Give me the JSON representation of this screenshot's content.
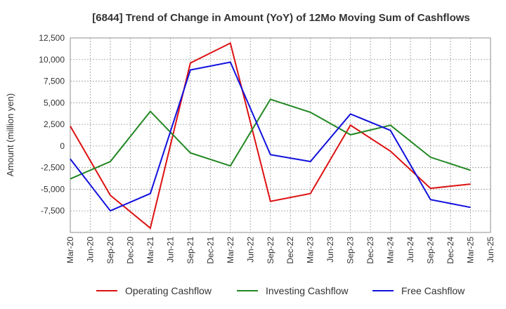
{
  "chart_data": {
    "type": "line",
    "title": "[6844]  Trend of Change in Amount (YoY) of 12Mo Moving Sum of Cashflows",
    "xlabel": "",
    "ylabel": "Amount (million yen)",
    "categories": [
      "Mar-20",
      "Jun-20",
      "Sep-20",
      "Dec-20",
      "Mar-21",
      "Jun-21",
      "Sep-21",
      "Dec-21",
      "Mar-22",
      "Jun-22",
      "Sep-22",
      "Dec-22",
      "Mar-23",
      "Jun-23",
      "Sep-23",
      "Dec-23",
      "Mar-24",
      "Jun-24",
      "Sep-24",
      "Dec-24",
      "Mar-25",
      "Jun-25"
    ],
    "ylim": [
      -10000,
      12500
    ],
    "yticks": [
      12500,
      10000,
      7500,
      5000,
      2500,
      0,
      -2500,
      -5000,
      -7500
    ],
    "ytick_labels": [
      "12,500",
      "10,000",
      "7,500",
      "5,000",
      "2,500",
      "0",
      "-2,500",
      "-5,000",
      "-7,500"
    ],
    "grid": true,
    "legend_position": "bottom",
    "series": [
      {
        "name": "Operating Cashflow",
        "color": "#dd1111",
        "points": [
          {
            "x": "Mar-20",
            "y": 2300
          },
          {
            "x": "Sep-20",
            "y": -5700
          },
          {
            "x": "Mar-21",
            "y": -9500
          },
          {
            "x": "Sep-21",
            "y": 9600
          },
          {
            "x": "Mar-22",
            "y": 11900
          },
          {
            "x": "Sep-22",
            "y": -6400
          },
          {
            "x": "Mar-23",
            "y": -5500
          },
          {
            "x": "Sep-23",
            "y": 2400
          },
          {
            "x": "Mar-24",
            "y": -600
          },
          {
            "x": "Sep-24",
            "y": -4900
          },
          {
            "x": "Mar-25",
            "y": -4400
          }
        ]
      },
      {
        "name": "Investing Cashflow",
        "color": "#228822",
        "points": [
          {
            "x": "Mar-20",
            "y": -3800
          },
          {
            "x": "Sep-20",
            "y": -1800
          },
          {
            "x": "Mar-21",
            "y": 4000
          },
          {
            "x": "Sep-21",
            "y": -800
          },
          {
            "x": "Mar-22",
            "y": -2300
          },
          {
            "x": "Sep-22",
            "y": 5400
          },
          {
            "x": "Mar-23",
            "y": 3900
          },
          {
            "x": "Sep-23",
            "y": 1300
          },
          {
            "x": "Mar-24",
            "y": 2400
          },
          {
            "x": "Sep-24",
            "y": -1300
          },
          {
            "x": "Mar-25",
            "y": -2800
          }
        ]
      },
      {
        "name": "Free Cashflow",
        "color": "#1111dd",
        "points": [
          {
            "x": "Mar-20",
            "y": -1500
          },
          {
            "x": "Sep-20",
            "y": -7500
          },
          {
            "x": "Mar-21",
            "y": -5500
          },
          {
            "x": "Sep-21",
            "y": 8800
          },
          {
            "x": "Mar-22",
            "y": 9700
          },
          {
            "x": "Sep-22",
            "y": -1000
          },
          {
            "x": "Mar-23",
            "y": -1800
          },
          {
            "x": "Sep-23",
            "y": 3700
          },
          {
            "x": "Mar-24",
            "y": 1800
          },
          {
            "x": "Sep-24",
            "y": -6200
          },
          {
            "x": "Mar-25",
            "y": -7100
          }
        ]
      }
    ]
  }
}
